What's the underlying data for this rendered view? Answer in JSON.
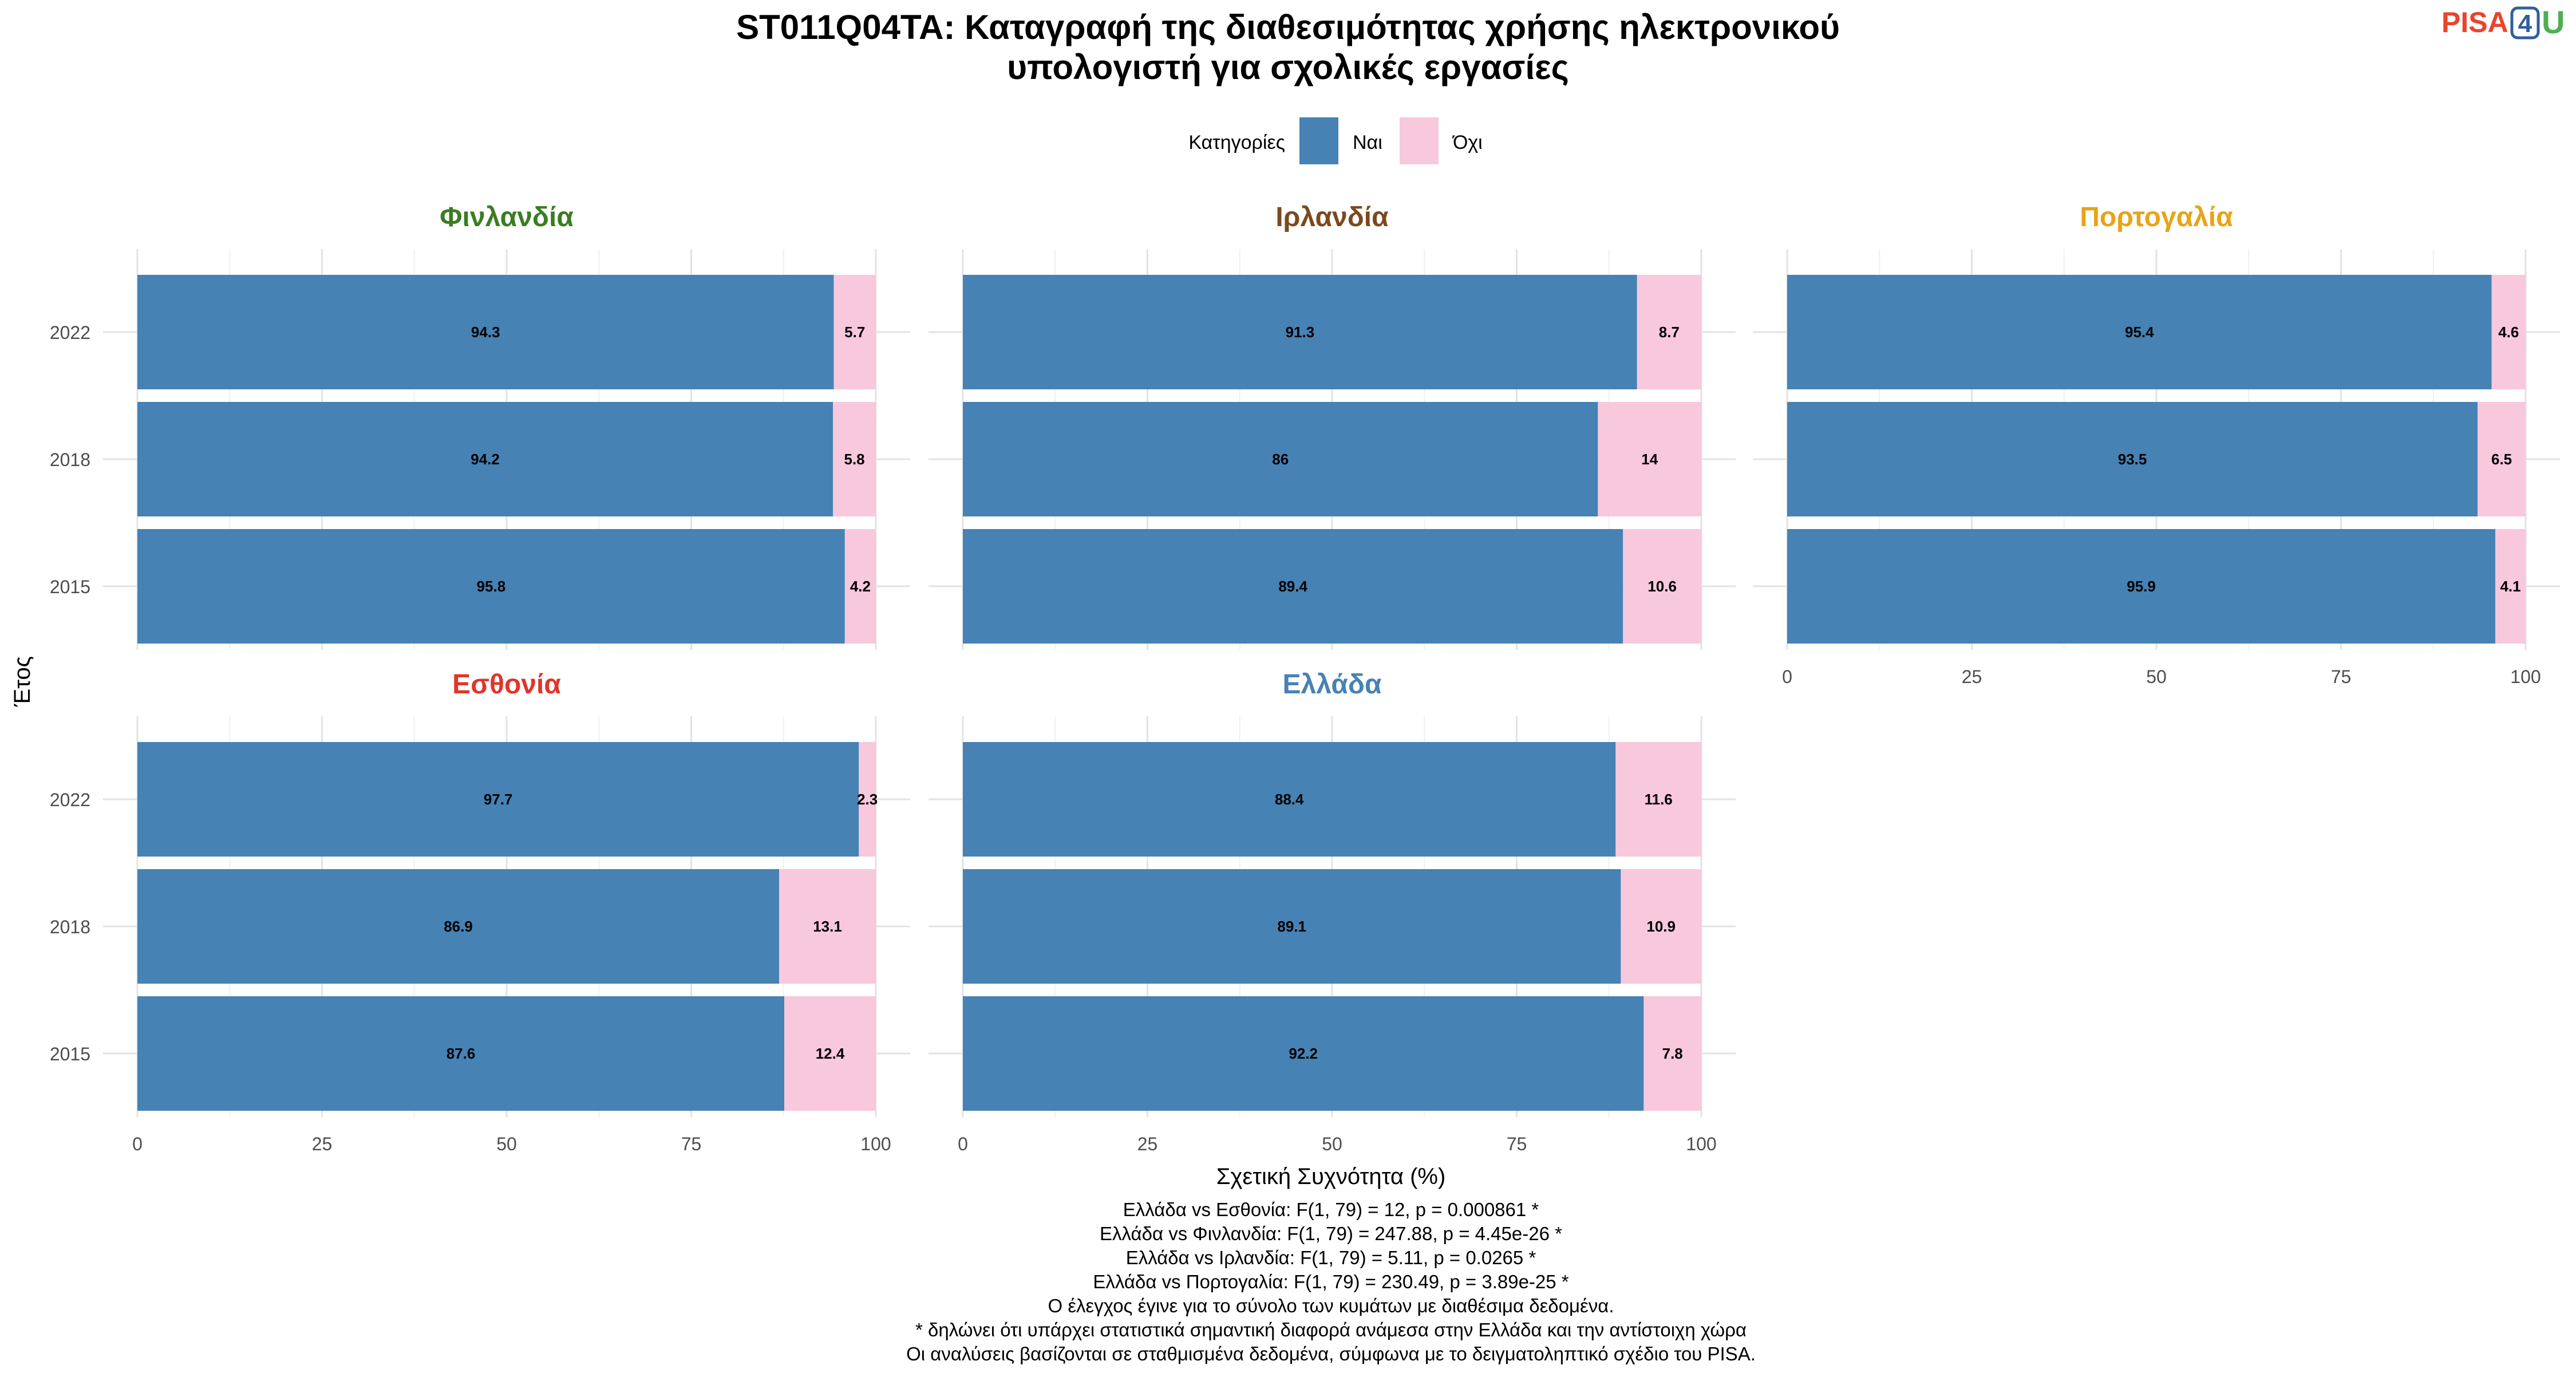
{
  "chart_data": {
    "type": "bar",
    "orientation": "horizontal",
    "stacked": true,
    "title": "ST011Q04TA: Καταγραφή της διαθεσιμότητας χρήσης ηλεκτρονικού υπολογιστή για σχολικές εργασίες",
    "title_lines": [
      "ST011Q04TA: Καταγραφή της διαθεσιμότητας χρήσης ηλεκτρονικού",
      "υπολογιστή για σχολικές εργασίες"
    ],
    "logo": {
      "text_a": "PISA",
      "text_b": "4",
      "text_c": "U",
      "color_a": "#e8452c",
      "color_b": "#2f5f9e",
      "color_c": "#4caf50"
    },
    "legend": {
      "title": "Κατηγορίες",
      "position": "top",
      "entries": [
        {
          "name": "Ναι",
          "color": "#4682b4"
        },
        {
          "name": "Όχι",
          "color": "#f8c8dc"
        }
      ]
    },
    "xlabel": "Σχετική Συχνότητα (%)",
    "ylabel": "Έτος",
    "xlim": [
      0,
      100
    ],
    "x_ticks": [
      0,
      25,
      50,
      75,
      100
    ],
    "grid": true,
    "categories": [
      "2022",
      "2018",
      "2015"
    ],
    "panels": [
      {
        "name": "Φινλανδία",
        "color": "#3a7d22",
        "series": [
          {
            "name": "Ναι",
            "values": [
              94.3,
              94.2,
              95.8
            ]
          },
          {
            "name": "Όχι",
            "values": [
              5.7,
              5.8,
              4.2
            ]
          }
        ]
      },
      {
        "name": "Ιρλανδία",
        "color": "#7a4a1e",
        "series": [
          {
            "name": "Ναι",
            "values": [
              91.3,
              86,
              89.4
            ]
          },
          {
            "name": "Όχι",
            "values": [
              8.7,
              14,
              10.6
            ]
          }
        ]
      },
      {
        "name": "Πορτογαλία",
        "color": "#e8a317",
        "series": [
          {
            "name": "Ναι",
            "values": [
              95.4,
              93.5,
              95.9
            ]
          },
          {
            "name": "Όχι",
            "values": [
              4.6,
              6.5,
              4.1
            ]
          }
        ]
      },
      {
        "name": "Εσθονία",
        "color": "#e0352b",
        "series": [
          {
            "name": "Ναι",
            "values": [
              97.7,
              86.9,
              87.6
            ]
          },
          {
            "name": "Όχι",
            "values": [
              2.3,
              13.1,
              12.4
            ]
          }
        ]
      },
      {
        "name": "Ελλάδα",
        "color": "#4682b4",
        "series": [
          {
            "name": "Ναι",
            "values": [
              88.4,
              89.1,
              92.2
            ]
          },
          {
            "name": "Όχι",
            "values": [
              11.6,
              10.9,
              7.8
            ]
          }
        ]
      }
    ],
    "notes": [
      "Ελλάδα vs Εσθονία: F(1, 79) = 12, p = 0.000861 *",
      "Ελλάδα vs Φινλανδία: F(1, 79) = 247.88, p = 4.45e-26 *",
      "Ελλάδα vs Ιρλανδία: F(1, 79) = 5.11, p = 0.0265 *",
      "Ελλάδα vs Πορτογαλία: F(1, 79) = 230.49, p = 3.89e-25 *",
      "Ο έλεγχος έγινε για το σύνολο των κυμάτων με διαθέσιμα δεδομένα.",
      "* δηλώνει ότι υπάρχει στατιστικά σημαντική διαφορά ανάμεσα στην Ελλάδα και την αντίστοιχη χώρα",
      "Οι αναλύσεις βασίζονται σε σταθμισμένα δεδομένα, σύμφωνα με το δειγματοληπτικό σχέδιο του PISA."
    ]
  }
}
